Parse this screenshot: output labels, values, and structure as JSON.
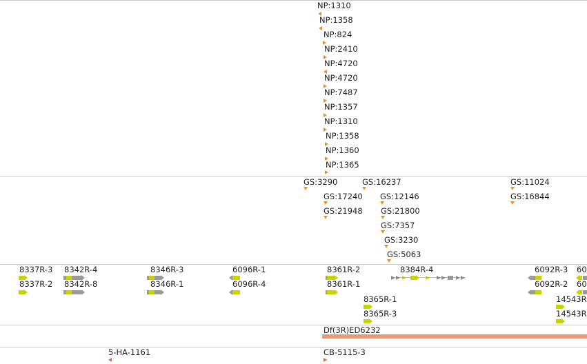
{
  "colors": {
    "np_marker": "#e0962a",
    "gs_marker": "#e0962a",
    "gene_exon": "#c8d400",
    "gene_utr": "#9a9a9a",
    "deficiency_bar": "#e9997a",
    "insertion_marker": "#e8673c",
    "divider": "#c8c8c8"
  },
  "np_track": {
    "labels": [
      "NP:1310",
      "NP:1358",
      "NP:824",
      "NP:2410",
      "NP:4720",
      "NP:4720",
      "NP:7487",
      "NP:1357",
      "NP:1310",
      "NP:1358",
      "NP:1360",
      "NP:1365"
    ]
  },
  "gs_track": {
    "labels": [
      "GS:3290",
      "GS:16237",
      "GS:11024",
      "GS:17240",
      "GS:12146",
      "GS:16844",
      "GS:21948",
      "GS:21800",
      "GS:7357",
      "GS:3230",
      "GS:5063"
    ]
  },
  "transcript_track": {
    "labels": [
      "8337R-3",
      "8337R-2",
      "8342R-4",
      "8342R-8",
      "8346R-3",
      "8346R-1",
      "6096R-1",
      "6096R-4",
      "8361R-2",
      "8361R-1",
      "8384R-4",
      "8365R-1",
      "8365R-3",
      "6092R-3",
      "6092R-2",
      "60",
      "60",
      "14543R",
      "14543R"
    ]
  },
  "deficiency_track": {
    "label": "Df(3R)ED6232"
  },
  "insertion_track": {
    "labels": [
      "5-HA-1161",
      "CB-5115-3"
    ]
  }
}
